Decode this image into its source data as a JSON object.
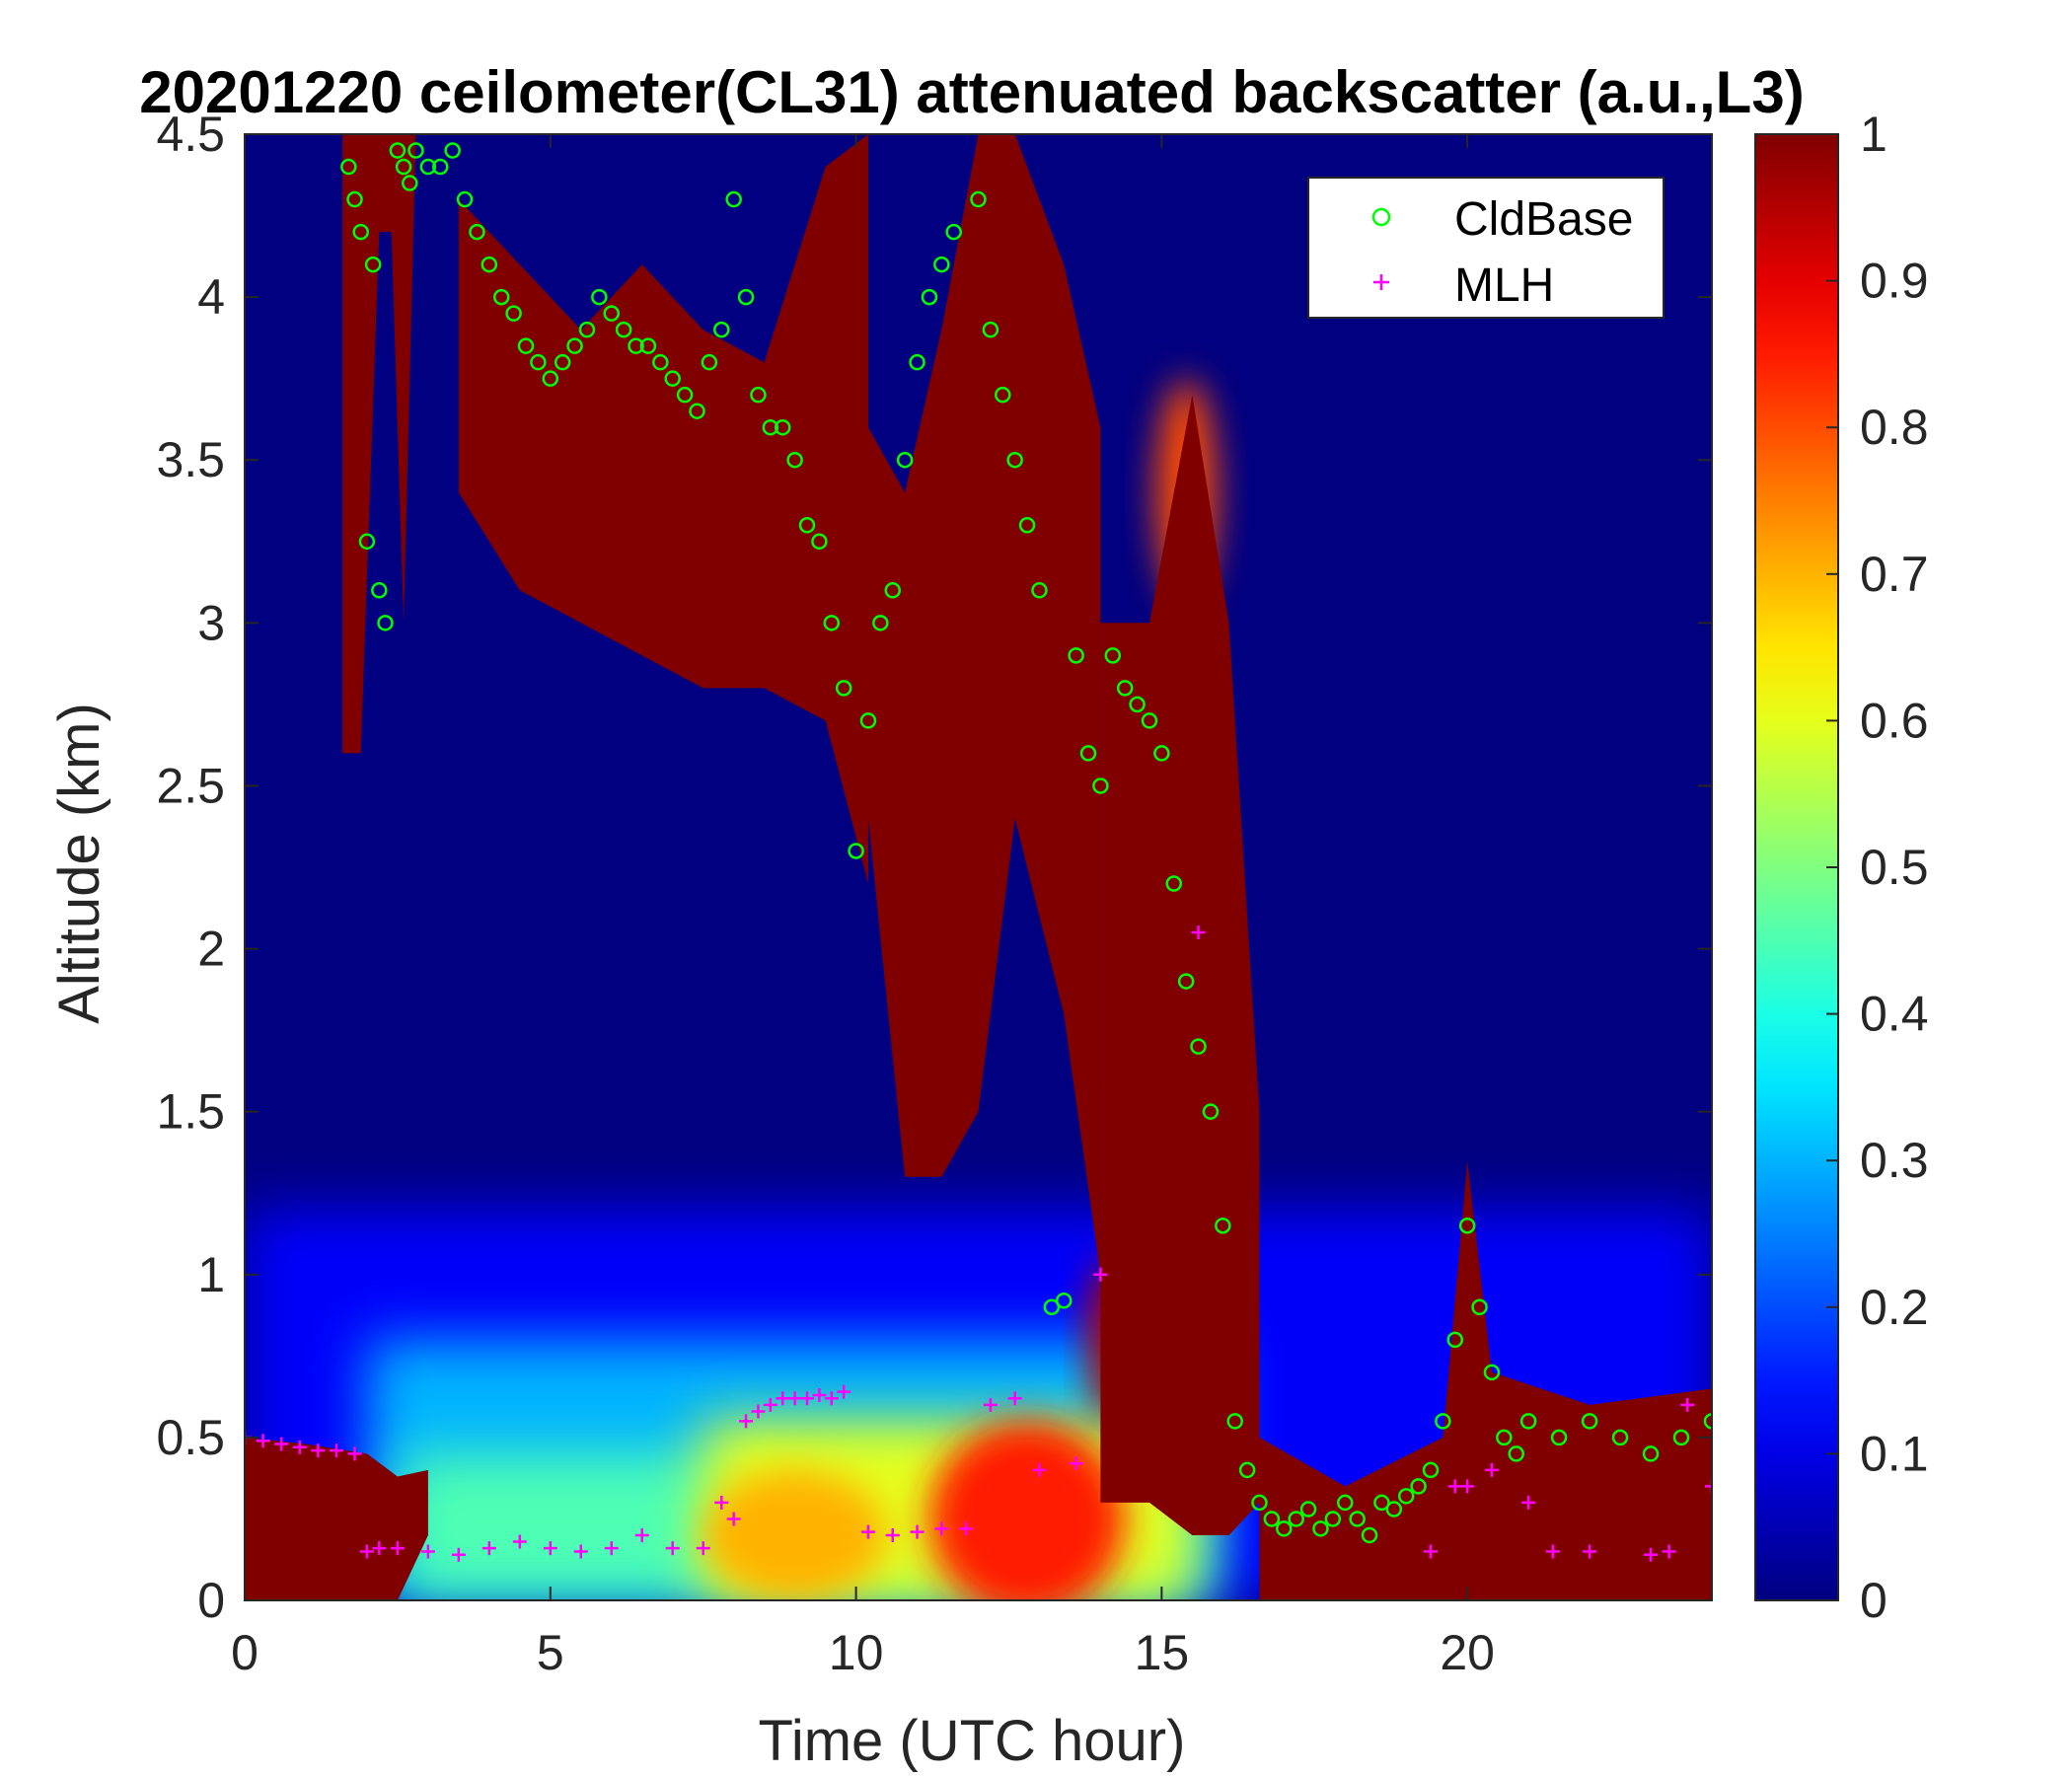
{
  "chart_data": {
    "type": "heatmap",
    "title": "20201220 ceilometer(CL31) attenuated backscatter (a.u.,L3)",
    "xlabel": "Time (UTC hour)",
    "ylabel": "Altitude (km)",
    "xlim": [
      0,
      24
    ],
    "ylim": [
      0,
      4.5
    ],
    "xticks": [
      0,
      5,
      10,
      15,
      20
    ],
    "yticks": [
      0,
      0.5,
      1,
      1.5,
      2,
      2.5,
      3,
      3.5,
      4,
      4.5
    ],
    "xtick_labels": [
      "0",
      "5",
      "10",
      "15",
      "20"
    ],
    "ytick_labels": [
      "0",
      "0.5",
      "1",
      "1.5",
      "2",
      "2.5",
      "3",
      "3.5",
      "4",
      "4.5"
    ],
    "colorbar": {
      "colormap": "jet",
      "range": [
        0,
        1
      ],
      "ticks": [
        0,
        0.1,
        0.2,
        0.3,
        0.4,
        0.5,
        0.6,
        0.7,
        0.8,
        0.9,
        1
      ],
      "tick_labels": [
        "0",
        "0.1",
        "0.2",
        "0.3",
        "0.4",
        "0.5",
        "0.6",
        "0.7",
        "0.8",
        "0.9",
        "1"
      ]
    },
    "legend": {
      "location": "top-right",
      "entries": [
        {
          "label": "CldBase",
          "marker": "circle",
          "color": "#00ff00"
        },
        {
          "label": "MLH",
          "marker": "plus",
          "color": "#ff00ff"
        }
      ]
    },
    "backscatter_regions": [
      {
        "kind": "column",
        "value": 1.0,
        "times": [
          1.6,
          1.9,
          2.2,
          2.4,
          2.6,
          2.8
        ],
        "base": [
          2.6,
          2.6,
          4.2,
          4.2,
          3.0,
          4.5
        ],
        "top": [
          4.5,
          4.5,
          4.5,
          4.5,
          4.5,
          4.5
        ]
      },
      {
        "kind": "column",
        "value": 1.0,
        "times": [
          3.5,
          4.5,
          5.5,
          6.5,
          7.5,
          8.5,
          9.5,
          10.2
        ],
        "base": [
          3.4,
          3.1,
          3.0,
          2.9,
          2.8,
          2.8,
          2.7,
          2.2
        ],
        "top": [
          4.3,
          4.1,
          3.9,
          4.1,
          3.9,
          3.8,
          4.4,
          4.5
        ]
      },
      {
        "kind": "column",
        "value": 1.0,
        "times": [
          10.2,
          10.8,
          11.4,
          12.0,
          12.6,
          13.4,
          14.0
        ],
        "base": [
          2.4,
          1.3,
          1.3,
          1.5,
          2.4,
          1.8,
          1.0
        ],
        "top": [
          3.6,
          3.4,
          3.9,
          4.5,
          4.5,
          4.1,
          3.6
        ]
      },
      {
        "kind": "column",
        "value": 1.0,
        "times": [
          14.0,
          14.8,
          15.5,
          16.1,
          16.6
        ],
        "base": [
          0.3,
          0.3,
          0.2,
          0.2,
          0.3
        ],
        "top": [
          3.0,
          3.0,
          3.7,
          3.0,
          1.5
        ]
      },
      {
        "kind": "column",
        "value": 1.0,
        "times": [
          16.6,
          18,
          19.6,
          20.0,
          20.4,
          22,
          24
        ],
        "base": [
          0,
          0,
          0,
          0,
          0,
          0,
          0
        ],
        "top": [
          0.5,
          0.35,
          0.5,
          1.35,
          0.7,
          0.6,
          0.65
        ]
      },
      {
        "kind": "column",
        "value": 1.0,
        "times": [
          0,
          1.0,
          2.0,
          2.5,
          3.0
        ],
        "base": [
          0,
          0,
          0,
          0,
          0.2
        ],
        "top": [
          0.5,
          0.48,
          0.45,
          0.38,
          0.4
        ]
      },
      {
        "kind": "blob",
        "value": 0.7,
        "x": 9.0,
        "y": 0.2,
        "rx": 1.5,
        "ry": 0.2
      },
      {
        "kind": "blob",
        "value": 0.85,
        "x": 12.8,
        "y": 0.25,
        "rx": 1.6,
        "ry": 0.3
      },
      {
        "kind": "blob",
        "value": 0.95,
        "x": 14.2,
        "y": 0.8,
        "rx": 0.4,
        "ry": 0.25
      },
      {
        "kind": "blob",
        "value": 0.8,
        "x": 15.4,
        "y": 3.4,
        "rx": 0.5,
        "ry": 0.35
      }
    ],
    "series": [
      {
        "name": "CldBase",
        "marker": "circle",
        "x": [
          1.7,
          1.8,
          1.9,
          2.0,
          2.1,
          2.2,
          2.3,
          2.5,
          2.6,
          2.7,
          2.8,
          3.0,
          3.2,
          3.4,
          3.6,
          3.8,
          4.0,
          4.2,
          4.4,
          4.6,
          4.8,
          5.0,
          5.2,
          5.4,
          5.6,
          5.8,
          6.0,
          6.2,
          6.4,
          6.6,
          6.8,
          7.0,
          7.2,
          7.4,
          7.6,
          7.8,
          8.0,
          8.2,
          8.4,
          8.6,
          8.8,
          9.0,
          9.2,
          9.4,
          9.6,
          9.8,
          10.0,
          10.2,
          10.4,
          10.6,
          10.8,
          11.0,
          11.2,
          11.4,
          11.6,
          12.0,
          12.2,
          12.4,
          12.6,
          12.8,
          13.0,
          13.2,
          13.4,
          13.6,
          13.8,
          14.0,
          14.2,
          14.4,
          14.6,
          14.8,
          15.0,
          15.2,
          15.4,
          15.6,
          15.8,
          16.0,
          16.2,
          16.4,
          16.6,
          16.8,
          17.0,
          17.2,
          17.4,
          17.6,
          17.8,
          18.0,
          18.2,
          18.4,
          18.6,
          18.8,
          19.0,
          19.2,
          19.4,
          19.6,
          19.8,
          20.0,
          20.2,
          20.4,
          20.6,
          20.8,
          21.0,
          21.5,
          22.0,
          22.5,
          23.0,
          23.5,
          24.0
        ],
        "y": [
          4.4,
          4.3,
          4.2,
          3.25,
          4.1,
          3.1,
          3.0,
          4.45,
          4.4,
          4.35,
          4.45,
          4.4,
          4.4,
          4.45,
          4.3,
          4.2,
          4.1,
          4.0,
          3.95,
          3.85,
          3.8,
          3.75,
          3.8,
          3.85,
          3.9,
          4.0,
          3.95,
          3.9,
          3.85,
          3.85,
          3.8,
          3.75,
          3.7,
          3.65,
          3.8,
          3.9,
          4.3,
          4.0,
          3.7,
          3.6,
          3.6,
          3.5,
          3.3,
          3.25,
          3.0,
          2.8,
          2.3,
          2.7,
          3.0,
          3.1,
          3.5,
          3.8,
          4.0,
          4.1,
          4.2,
          4.3,
          3.9,
          3.7,
          3.5,
          3.3,
          3.1,
          0.9,
          0.92,
          2.9,
          2.6,
          2.5,
          2.9,
          2.8,
          2.75,
          2.7,
          2.6,
          2.2,
          1.9,
          1.7,
          1.5,
          1.15,
          0.55,
          0.4,
          0.3,
          0.25,
          0.22,
          0.25,
          0.28,
          0.22,
          0.25,
          0.3,
          0.25,
          0.2,
          0.3,
          0.28,
          0.32,
          0.35,
          0.4,
          0.55,
          0.8,
          1.15,
          0.9,
          0.7,
          0.5,
          0.45,
          0.55,
          0.5,
          0.55,
          0.5,
          0.45,
          0.5,
          0.55
        ]
      },
      {
        "name": "MLH",
        "marker": "plus",
        "x": [
          0.0,
          0.3,
          0.6,
          0.9,
          1.2,
          1.5,
          1.8,
          2.0,
          2.2,
          2.5,
          3.0,
          3.5,
          4.0,
          4.5,
          5.0,
          5.5,
          6.0,
          6.5,
          7.0,
          7.5,
          7.8,
          8.0,
          8.2,
          8.4,
          8.6,
          8.8,
          9.0,
          9.2,
          9.4,
          9.6,
          9.8,
          10.2,
          10.6,
          11.0,
          11.4,
          11.8,
          12.2,
          12.6,
          13.0,
          13.6,
          14.0,
          15.6,
          19.4,
          19.8,
          20.0,
          20.4,
          21.0,
          21.4,
          22.0,
          23.0,
          23.3,
          23.6,
          24.0
        ],
        "y": [
          0.5,
          0.49,
          0.48,
          0.47,
          0.46,
          0.46,
          0.45,
          0.15,
          0.16,
          0.16,
          0.15,
          0.14,
          0.16,
          0.18,
          0.16,
          0.15,
          0.16,
          0.2,
          0.16,
          0.16,
          0.3,
          0.25,
          0.55,
          0.58,
          0.6,
          0.62,
          0.62,
          0.62,
          0.63,
          0.62,
          0.64,
          0.21,
          0.2,
          0.21,
          0.22,
          0.22,
          0.6,
          0.62,
          0.4,
          0.42,
          1.0,
          2.05,
          0.15,
          0.35,
          0.35,
          0.4,
          0.3,
          0.15,
          0.15,
          0.14,
          0.15,
          0.6,
          0.35
        ]
      }
    ]
  }
}
